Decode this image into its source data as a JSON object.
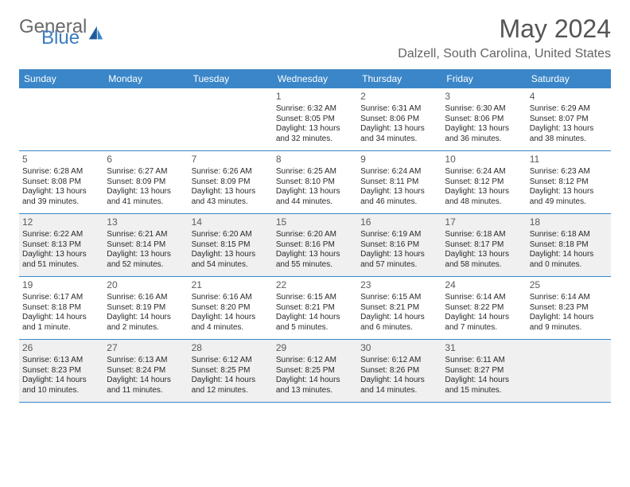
{
  "brand": {
    "word1": "General",
    "word2": "Blue"
  },
  "header": {
    "month": "May 2024",
    "location": "Dalzell, South Carolina, United States"
  },
  "colors": {
    "bar": "#3a86c8",
    "off": "#f0f0f0",
    "text": "#2a2a2a",
    "muted": "#6a6a6a"
  },
  "dayNames": [
    "Sunday",
    "Monday",
    "Tuesday",
    "Wednesday",
    "Thursday",
    "Friday",
    "Saturday"
  ],
  "weeks": [
    [
      {
        "n": "",
        "off": false,
        "empty": true
      },
      {
        "n": "",
        "off": false,
        "empty": true
      },
      {
        "n": "",
        "off": false,
        "empty": true
      },
      {
        "n": "1",
        "sr": "Sunrise: 6:32 AM",
        "ss": "Sunset: 8:05 PM",
        "d1": "Daylight: 13 hours",
        "d2": "and 32 minutes."
      },
      {
        "n": "2",
        "sr": "Sunrise: 6:31 AM",
        "ss": "Sunset: 8:06 PM",
        "d1": "Daylight: 13 hours",
        "d2": "and 34 minutes."
      },
      {
        "n": "3",
        "sr": "Sunrise: 6:30 AM",
        "ss": "Sunset: 8:06 PM",
        "d1": "Daylight: 13 hours",
        "d2": "and 36 minutes."
      },
      {
        "n": "4",
        "sr": "Sunrise: 6:29 AM",
        "ss": "Sunset: 8:07 PM",
        "d1": "Daylight: 13 hours",
        "d2": "and 38 minutes."
      }
    ],
    [
      {
        "n": "5",
        "sr": "Sunrise: 6:28 AM",
        "ss": "Sunset: 8:08 PM",
        "d1": "Daylight: 13 hours",
        "d2": "and 39 minutes."
      },
      {
        "n": "6",
        "sr": "Sunrise: 6:27 AM",
        "ss": "Sunset: 8:09 PM",
        "d1": "Daylight: 13 hours",
        "d2": "and 41 minutes."
      },
      {
        "n": "7",
        "sr": "Sunrise: 6:26 AM",
        "ss": "Sunset: 8:09 PM",
        "d1": "Daylight: 13 hours",
        "d2": "and 43 minutes."
      },
      {
        "n": "8",
        "sr": "Sunrise: 6:25 AM",
        "ss": "Sunset: 8:10 PM",
        "d1": "Daylight: 13 hours",
        "d2": "and 44 minutes."
      },
      {
        "n": "9",
        "sr": "Sunrise: 6:24 AM",
        "ss": "Sunset: 8:11 PM",
        "d1": "Daylight: 13 hours",
        "d2": "and 46 minutes."
      },
      {
        "n": "10",
        "sr": "Sunrise: 6:24 AM",
        "ss": "Sunset: 8:12 PM",
        "d1": "Daylight: 13 hours",
        "d2": "and 48 minutes."
      },
      {
        "n": "11",
        "sr": "Sunrise: 6:23 AM",
        "ss": "Sunset: 8:12 PM",
        "d1": "Daylight: 13 hours",
        "d2": "and 49 minutes."
      }
    ],
    [
      {
        "n": "12",
        "off": true,
        "sr": "Sunrise: 6:22 AM",
        "ss": "Sunset: 8:13 PM",
        "d1": "Daylight: 13 hours",
        "d2": "and 51 minutes."
      },
      {
        "n": "13",
        "off": true,
        "sr": "Sunrise: 6:21 AM",
        "ss": "Sunset: 8:14 PM",
        "d1": "Daylight: 13 hours",
        "d2": "and 52 minutes."
      },
      {
        "n": "14",
        "off": true,
        "sr": "Sunrise: 6:20 AM",
        "ss": "Sunset: 8:15 PM",
        "d1": "Daylight: 13 hours",
        "d2": "and 54 minutes."
      },
      {
        "n": "15",
        "off": true,
        "sr": "Sunrise: 6:20 AM",
        "ss": "Sunset: 8:16 PM",
        "d1": "Daylight: 13 hours",
        "d2": "and 55 minutes."
      },
      {
        "n": "16",
        "off": true,
        "sr": "Sunrise: 6:19 AM",
        "ss": "Sunset: 8:16 PM",
        "d1": "Daylight: 13 hours",
        "d2": "and 57 minutes."
      },
      {
        "n": "17",
        "off": true,
        "sr": "Sunrise: 6:18 AM",
        "ss": "Sunset: 8:17 PM",
        "d1": "Daylight: 13 hours",
        "d2": "and 58 minutes."
      },
      {
        "n": "18",
        "off": true,
        "sr": "Sunrise: 6:18 AM",
        "ss": "Sunset: 8:18 PM",
        "d1": "Daylight: 14 hours",
        "d2": "and 0 minutes."
      }
    ],
    [
      {
        "n": "19",
        "sr": "Sunrise: 6:17 AM",
        "ss": "Sunset: 8:18 PM",
        "d1": "Daylight: 14 hours",
        "d2": "and 1 minute."
      },
      {
        "n": "20",
        "sr": "Sunrise: 6:16 AM",
        "ss": "Sunset: 8:19 PM",
        "d1": "Daylight: 14 hours",
        "d2": "and 2 minutes."
      },
      {
        "n": "21",
        "sr": "Sunrise: 6:16 AM",
        "ss": "Sunset: 8:20 PM",
        "d1": "Daylight: 14 hours",
        "d2": "and 4 minutes."
      },
      {
        "n": "22",
        "sr": "Sunrise: 6:15 AM",
        "ss": "Sunset: 8:21 PM",
        "d1": "Daylight: 14 hours",
        "d2": "and 5 minutes."
      },
      {
        "n": "23",
        "sr": "Sunrise: 6:15 AM",
        "ss": "Sunset: 8:21 PM",
        "d1": "Daylight: 14 hours",
        "d2": "and 6 minutes."
      },
      {
        "n": "24",
        "sr": "Sunrise: 6:14 AM",
        "ss": "Sunset: 8:22 PM",
        "d1": "Daylight: 14 hours",
        "d2": "and 7 minutes."
      },
      {
        "n": "25",
        "sr": "Sunrise: 6:14 AM",
        "ss": "Sunset: 8:23 PM",
        "d1": "Daylight: 14 hours",
        "d2": "and 9 minutes."
      }
    ],
    [
      {
        "n": "26",
        "off": true,
        "sr": "Sunrise: 6:13 AM",
        "ss": "Sunset: 8:23 PM",
        "d1": "Daylight: 14 hours",
        "d2": "and 10 minutes."
      },
      {
        "n": "27",
        "off": true,
        "sr": "Sunrise: 6:13 AM",
        "ss": "Sunset: 8:24 PM",
        "d1": "Daylight: 14 hours",
        "d2": "and 11 minutes."
      },
      {
        "n": "28",
        "off": true,
        "sr": "Sunrise: 6:12 AM",
        "ss": "Sunset: 8:25 PM",
        "d1": "Daylight: 14 hours",
        "d2": "and 12 minutes."
      },
      {
        "n": "29",
        "off": true,
        "sr": "Sunrise: 6:12 AM",
        "ss": "Sunset: 8:25 PM",
        "d1": "Daylight: 14 hours",
        "d2": "and 13 minutes."
      },
      {
        "n": "30",
        "off": true,
        "sr": "Sunrise: 6:12 AM",
        "ss": "Sunset: 8:26 PM",
        "d1": "Daylight: 14 hours",
        "d2": "and 14 minutes."
      },
      {
        "n": "31",
        "off": true,
        "sr": "Sunrise: 6:11 AM",
        "ss": "Sunset: 8:27 PM",
        "d1": "Daylight: 14 hours",
        "d2": "and 15 minutes."
      },
      {
        "n": "",
        "off": true,
        "empty": true
      }
    ]
  ]
}
